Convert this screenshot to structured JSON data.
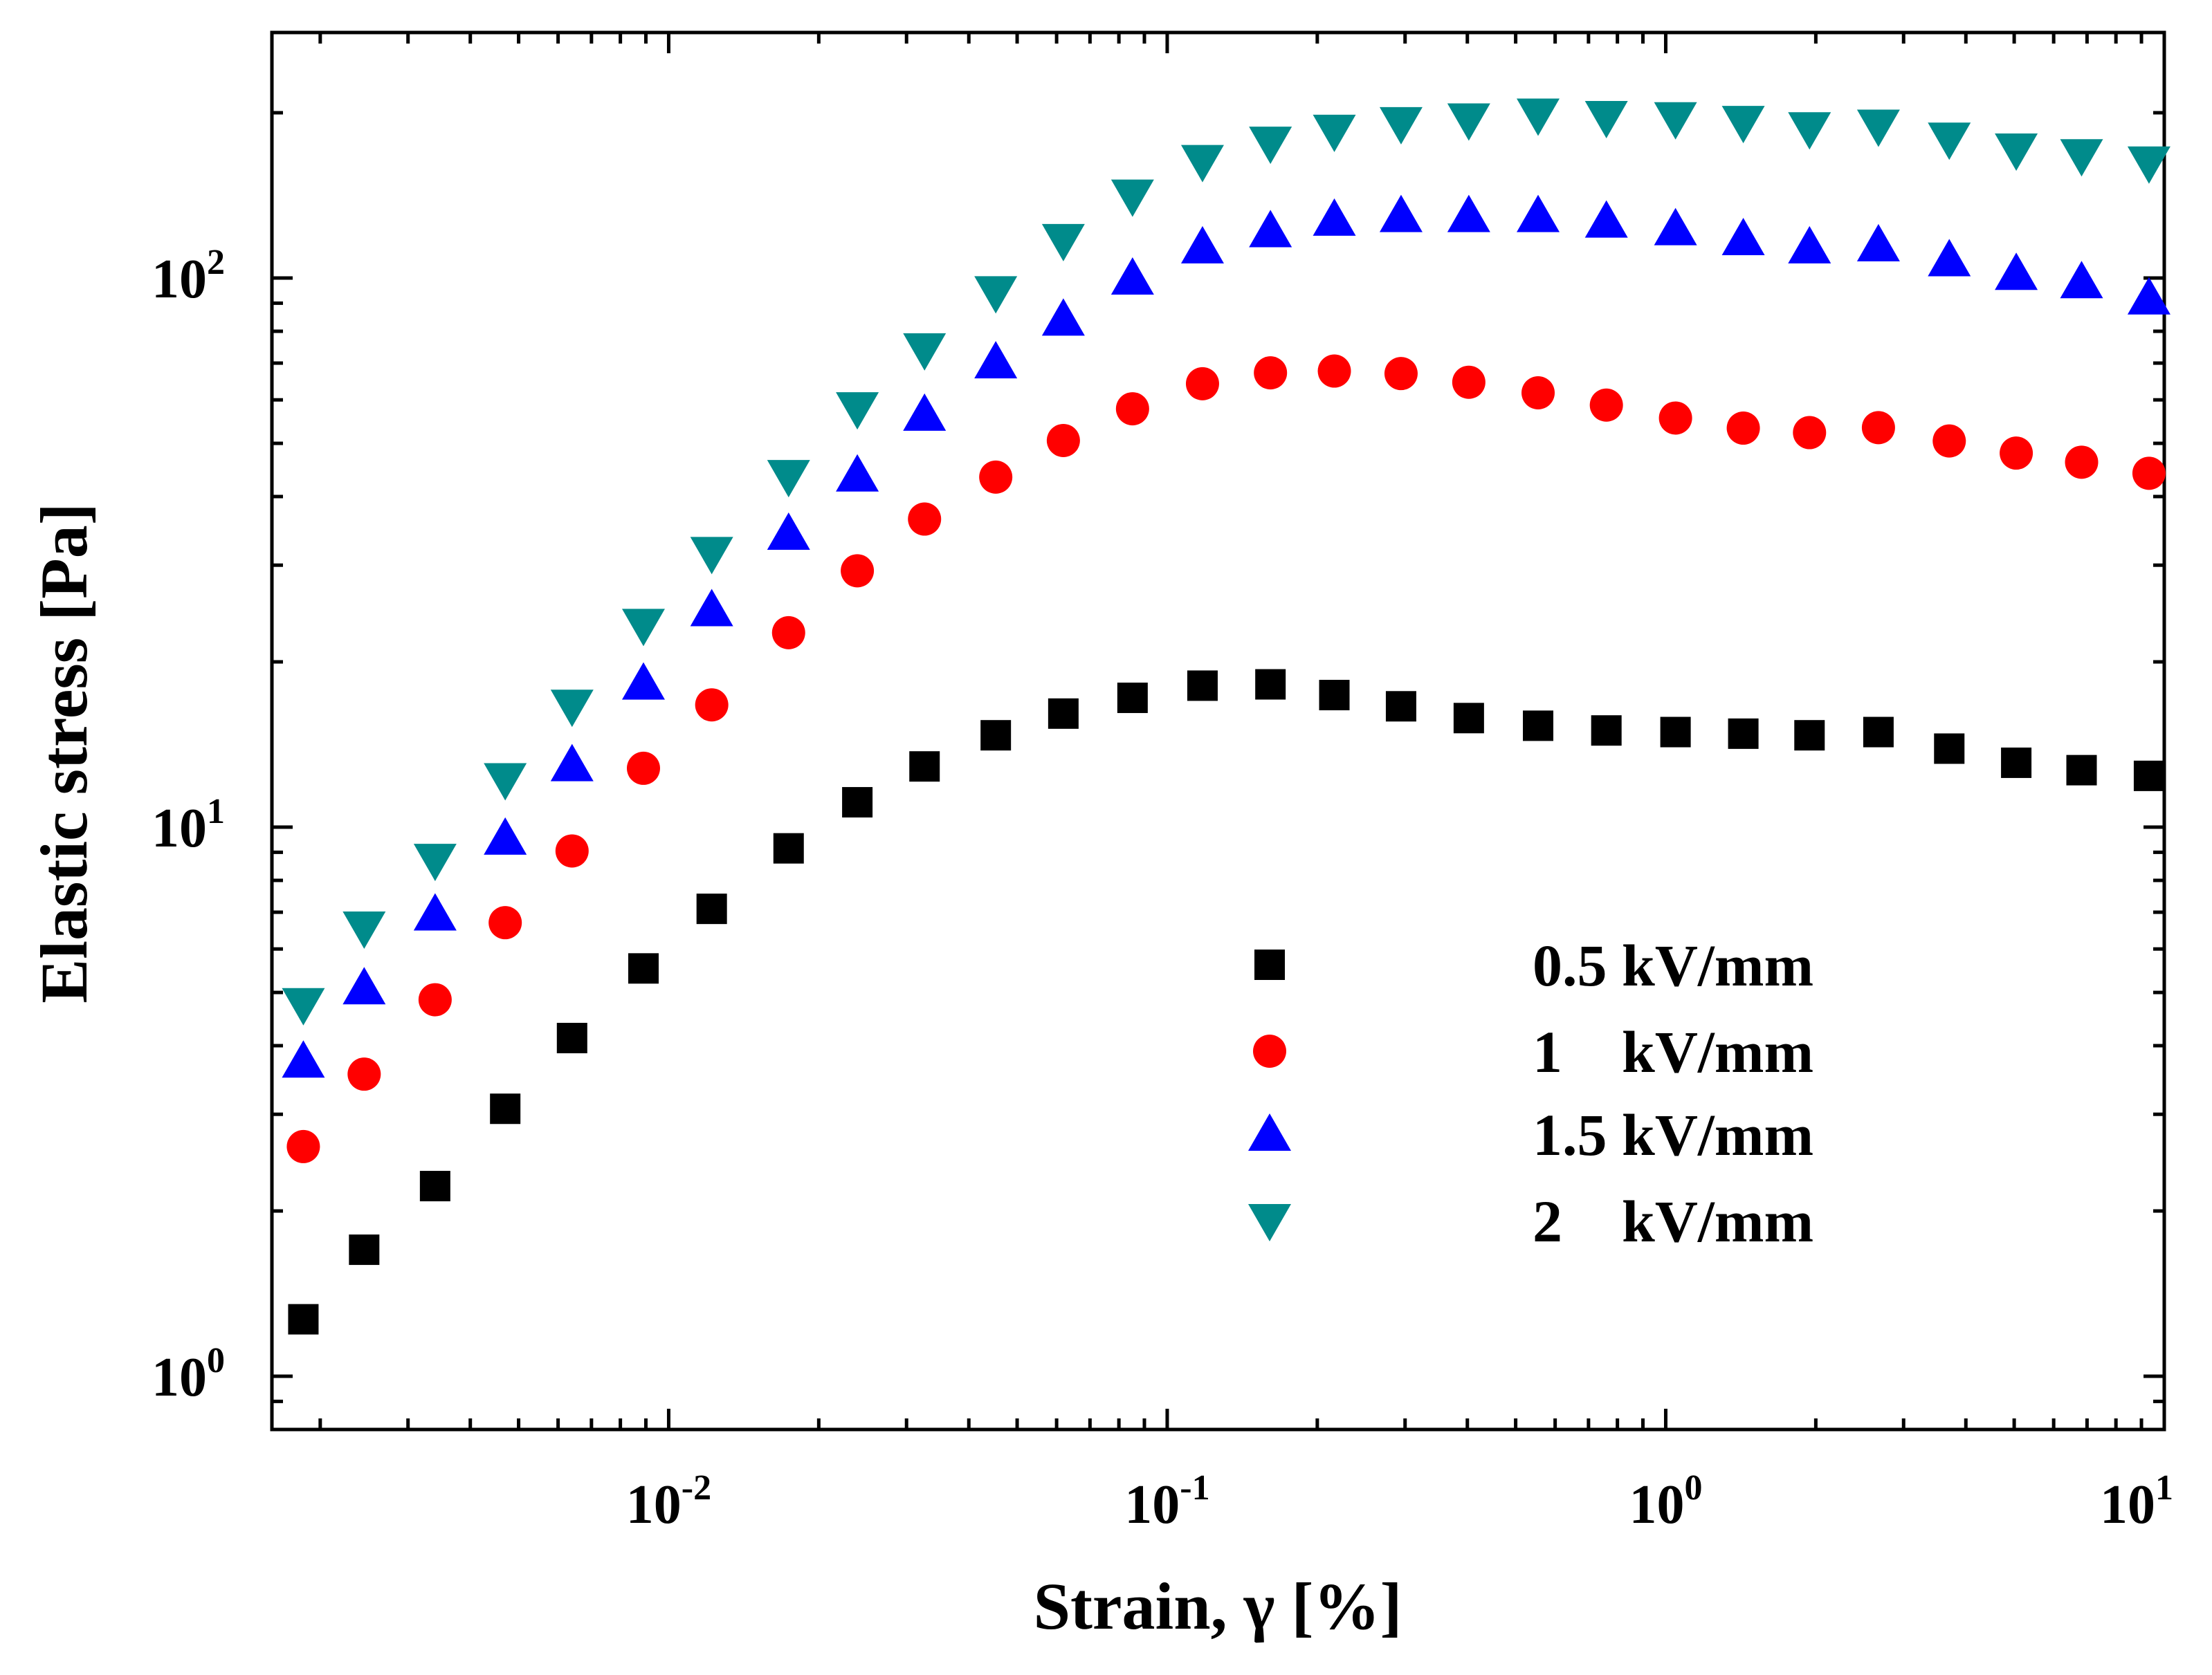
{
  "chart_data": {
    "type": "scatter",
    "xlabel": "Strain, γ [%]",
    "ylabel": "Elastic stress [Pa]",
    "xscale": "log",
    "yscale": "log",
    "xlim": [
      0.0016,
      10
    ],
    "ylim": [
      0.8,
      280
    ],
    "x_ticks": [
      {
        "value": 0.01,
        "base": "10",
        "exp": "-2"
      },
      {
        "value": 0.1,
        "base": "10",
        "exp": "-1"
      },
      {
        "value": 1,
        "base": "10",
        "exp": "0"
      },
      {
        "value": 10,
        "base": "10",
        "exp": "1"
      }
    ],
    "y_ticks": [
      {
        "value": 1,
        "base": "10",
        "exp": "0"
      },
      {
        "value": 10,
        "base": "10",
        "exp": "1"
      },
      {
        "value": 100,
        "base": "10",
        "exp": "2"
      }
    ],
    "grid": false,
    "legend_position": "center-right",
    "x": [
      0.00185,
      0.00245,
      0.0034,
      0.0047,
      0.0064,
      0.0089,
      0.0122,
      0.0174,
      0.0239,
      0.0326,
      0.0453,
      0.0619,
      0.0852,
      0.1177,
      0.1611,
      0.2164,
      0.2945,
      0.4027,
      0.5546,
      0.7602,
      1.0462,
      1.4308,
      1.9427,
      2.671,
      3.7046,
      5.0478,
      6.8258,
      9.3189
    ],
    "series": [
      {
        "name": "0.5 kV/mm",
        "marker": "square",
        "color": "#000000",
        "values": [
          1.27,
          1.7,
          2.22,
          3.07,
          4.13,
          5.53,
          7.1,
          9.15,
          11.1,
          12.9,
          14.7,
          16.1,
          17.2,
          18.1,
          18.2,
          17.4,
          16.6,
          15.8,
          15.3,
          15.0,
          14.9,
          14.8,
          14.7,
          14.9,
          13.9,
          13.1,
          12.7,
          12.4
        ]
      },
      {
        "name": "1    kV/mm",
        "marker": "circle",
        "color": "#ff0000",
        "values": [
          2.62,
          3.55,
          4.85,
          6.7,
          9.05,
          12.8,
          16.7,
          22.6,
          29.3,
          36.4,
          43.4,
          50.6,
          57.8,
          64.2,
          67.2,
          67.7,
          67.0,
          64.6,
          61.8,
          58.7,
          55.6,
          53.3,
          52.3,
          53.4,
          50.5,
          48.0,
          46.2,
          44.1
        ]
      },
      {
        "name": "1.5 kV/mm",
        "marker": "triangle-up",
        "color": "#0000ff",
        "values": [
          3.75,
          5.1,
          6.95,
          9.55,
          13.0,
          18.3,
          24.9,
          34.3,
          43.8,
          56.5,
          70.4,
          84.2,
          100.0,
          114.0,
          122.0,
          128.0,
          130.0,
          130.0,
          130.0,
          127.0,
          123.0,
          118.0,
          114.0,
          115.0,
          108.0,
          102.0,
          98.5,
          92.0
        ]
      },
      {
        "name": "2    kV/mm",
        "marker": "triangle-down",
        "color": "#008b8b",
        "values": [
          4.75,
          6.55,
          8.7,
          12.2,
          16.6,
          23.3,
          31.5,
          43.5,
          57.8,
          74.0,
          94.0,
          117.0,
          141.0,
          163.0,
          176.0,
          185.0,
          191.0,
          194.0,
          198.0,
          196.0,
          195.0,
          192.0,
          187.0,
          189.0,
          179.0,
          171.0,
          167.0,
          162.0
        ]
      }
    ]
  }
}
